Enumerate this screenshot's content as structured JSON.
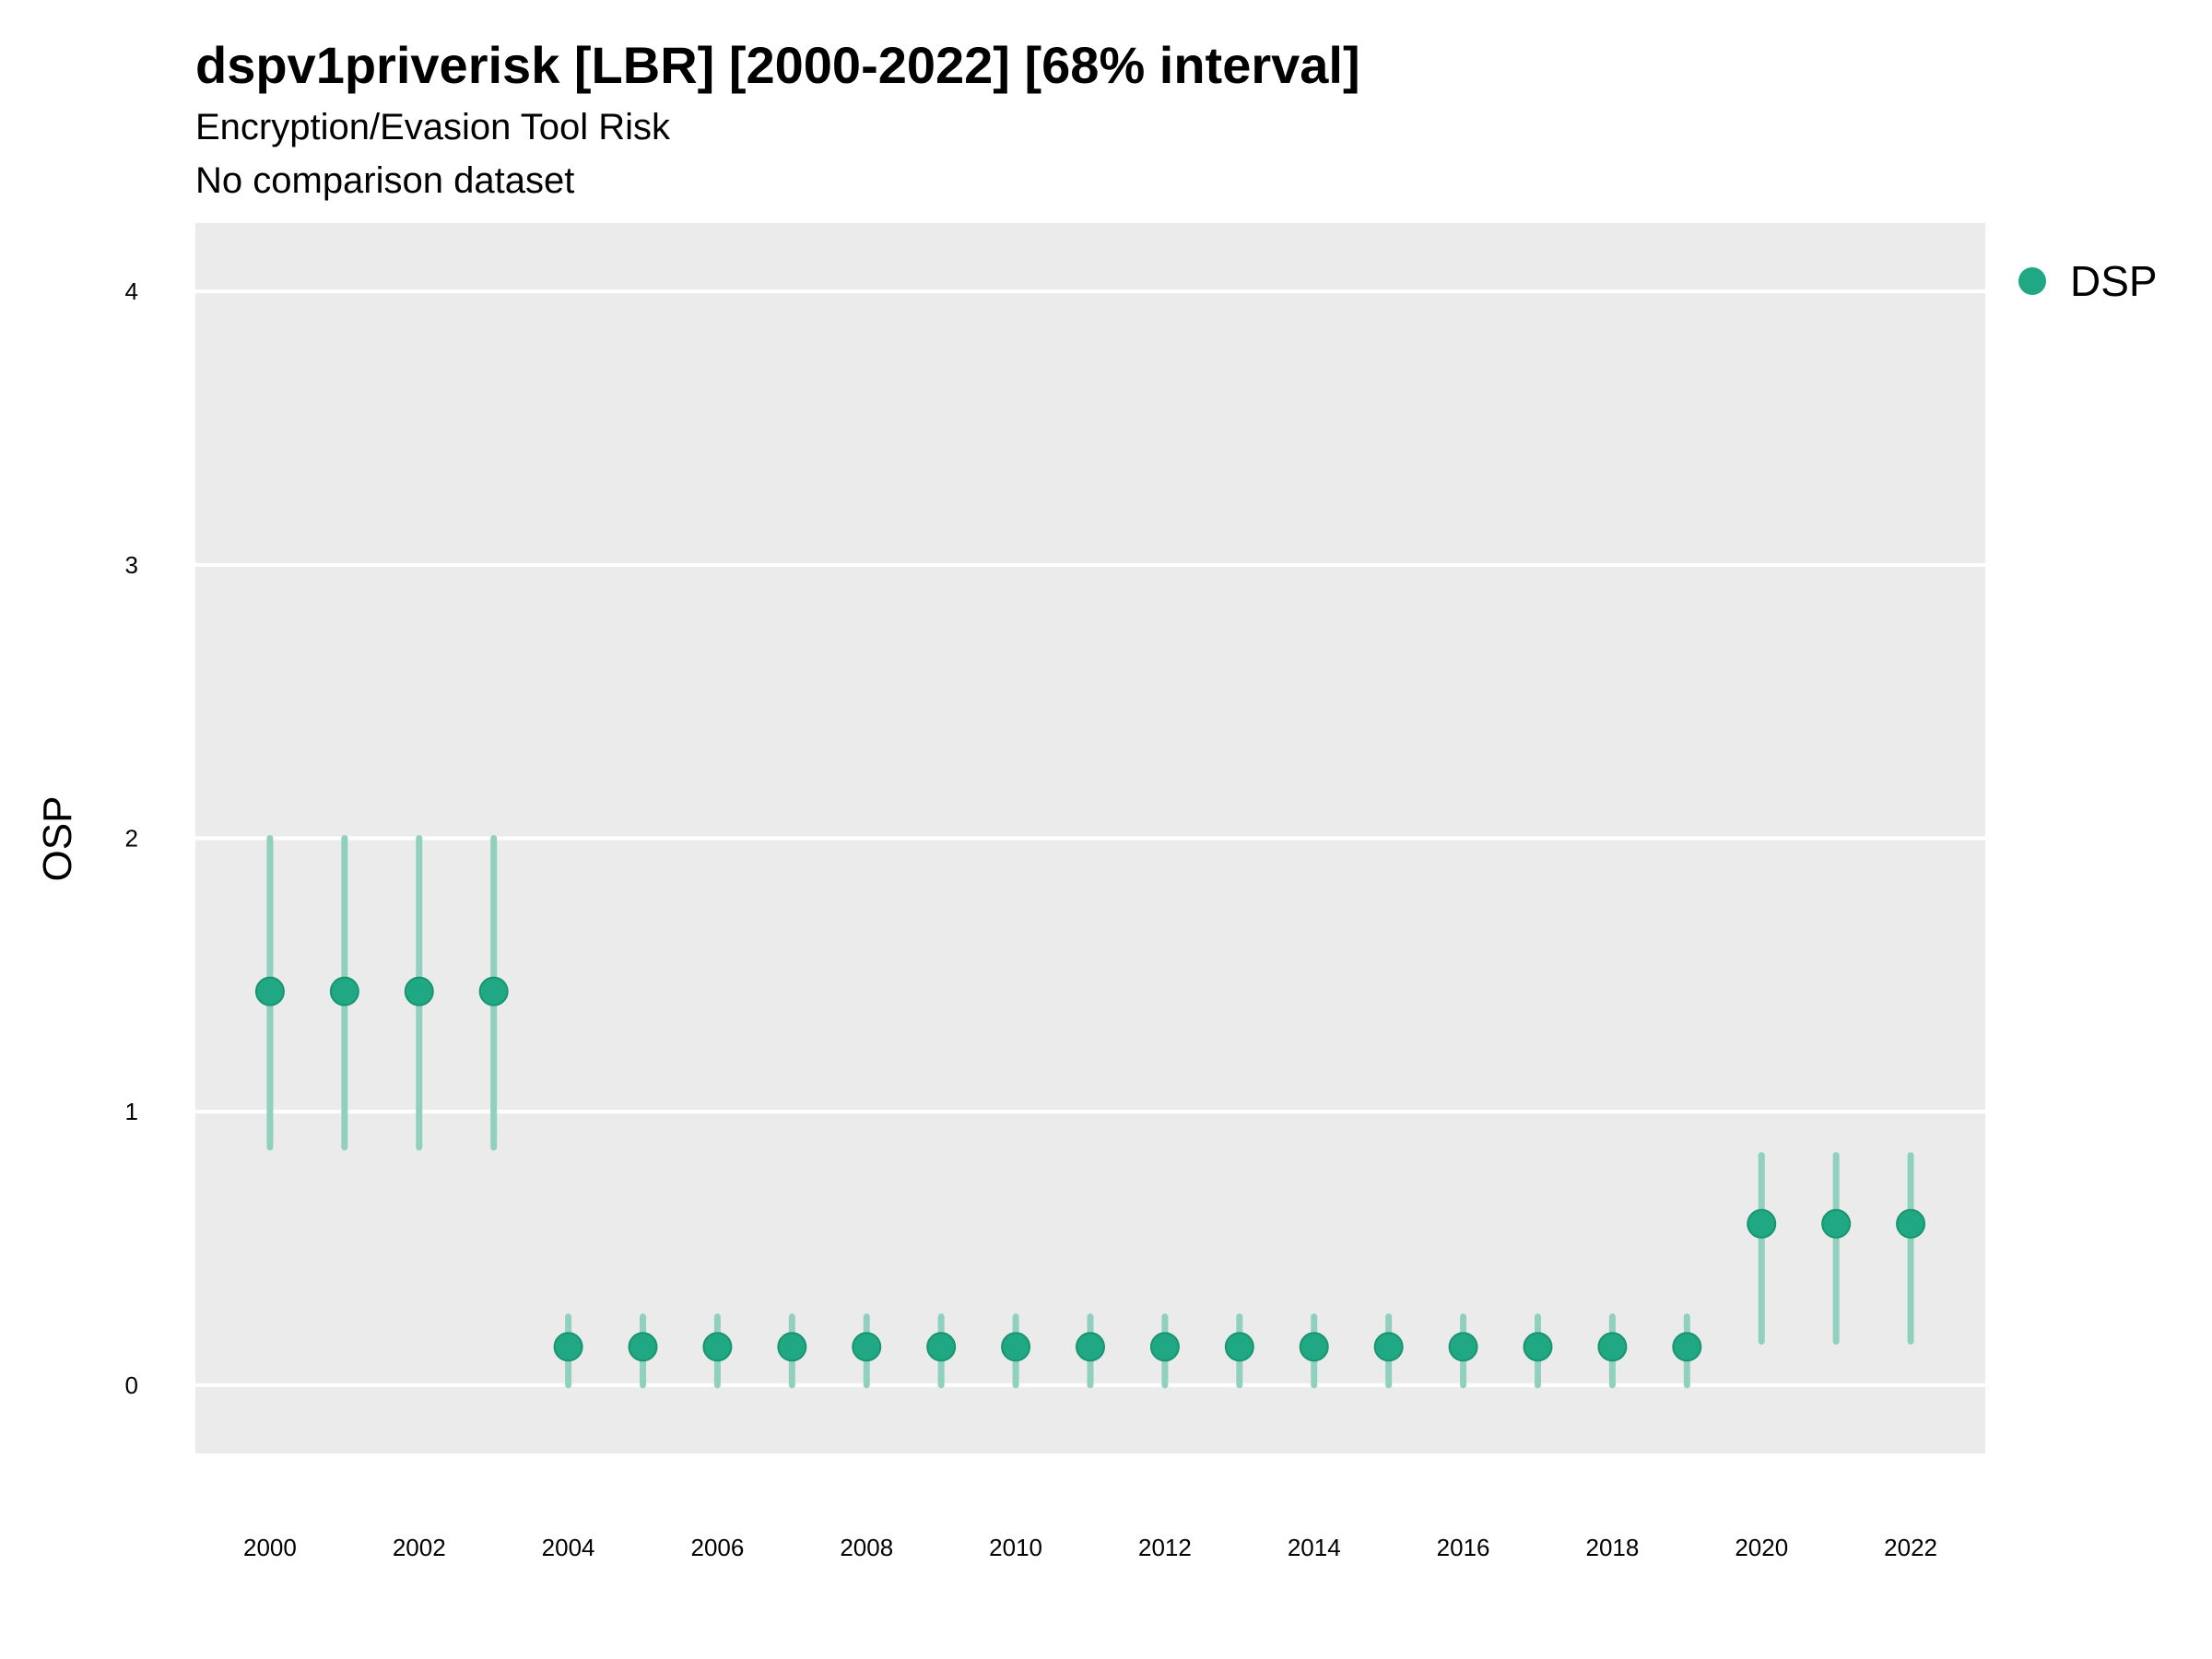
{
  "chart_data": {
    "type": "scatter",
    "title": "dspv1priverisk [LBR] [2000-2022] [68% interval]",
    "subtitle": "Encryption/Evasion Tool Risk",
    "caption": "No comparison dataset",
    "xlabel": "",
    "ylabel": "OSP",
    "xlim": [
      1999,
      2023
    ],
    "ylim": [
      -0.25,
      4.25
    ],
    "x_ticks": [
      "2000",
      "2002",
      "2004",
      "2006",
      "2008",
      "2010",
      "2012",
      "2014",
      "2016",
      "2018",
      "2020",
      "2022"
    ],
    "y_ticks": [
      "0",
      "1",
      "2",
      "3",
      "4"
    ],
    "grid": true,
    "legend_position": "right",
    "series": [
      {
        "name": "DSP",
        "color": "#1fa883",
        "points": [
          {
            "x": 2000,
            "y": 1.44,
            "low": 0.87,
            "high": 2.0
          },
          {
            "x": 2001,
            "y": 1.44,
            "low": 0.87,
            "high": 2.0
          },
          {
            "x": 2002,
            "y": 1.44,
            "low": 0.87,
            "high": 2.0
          },
          {
            "x": 2003,
            "y": 1.44,
            "low": 0.87,
            "high": 2.0
          },
          {
            "x": 2004,
            "y": 0.14,
            "low": 0.0,
            "high": 0.25
          },
          {
            "x": 2005,
            "y": 0.14,
            "low": 0.0,
            "high": 0.25
          },
          {
            "x": 2006,
            "y": 0.14,
            "low": 0.0,
            "high": 0.25
          },
          {
            "x": 2007,
            "y": 0.14,
            "low": 0.0,
            "high": 0.25
          },
          {
            "x": 2008,
            "y": 0.14,
            "low": 0.0,
            "high": 0.25
          },
          {
            "x": 2009,
            "y": 0.14,
            "low": 0.0,
            "high": 0.25
          },
          {
            "x": 2010,
            "y": 0.14,
            "low": 0.0,
            "high": 0.25
          },
          {
            "x": 2011,
            "y": 0.14,
            "low": 0.0,
            "high": 0.25
          },
          {
            "x": 2012,
            "y": 0.14,
            "low": 0.0,
            "high": 0.25
          },
          {
            "x": 2013,
            "y": 0.14,
            "low": 0.0,
            "high": 0.25
          },
          {
            "x": 2014,
            "y": 0.14,
            "low": 0.0,
            "high": 0.25
          },
          {
            "x": 2015,
            "y": 0.14,
            "low": 0.0,
            "high": 0.25
          },
          {
            "x": 2016,
            "y": 0.14,
            "low": 0.0,
            "high": 0.25
          },
          {
            "x": 2017,
            "y": 0.14,
            "low": 0.0,
            "high": 0.25
          },
          {
            "x": 2018,
            "y": 0.14,
            "low": 0.0,
            "high": 0.25
          },
          {
            "x": 2019,
            "y": 0.14,
            "low": 0.0,
            "high": 0.25
          },
          {
            "x": 2020,
            "y": 0.59,
            "low": 0.16,
            "high": 0.84
          },
          {
            "x": 2021,
            "y": 0.59,
            "low": 0.16,
            "high": 0.84
          },
          {
            "x": 2022,
            "y": 0.59,
            "low": 0.16,
            "high": 0.84
          }
        ]
      }
    ]
  },
  "colors": {
    "panel_background": "#ebebeb",
    "gridline": "#ffffff",
    "point": "#1fa883",
    "interval": "#8fd1be"
  }
}
